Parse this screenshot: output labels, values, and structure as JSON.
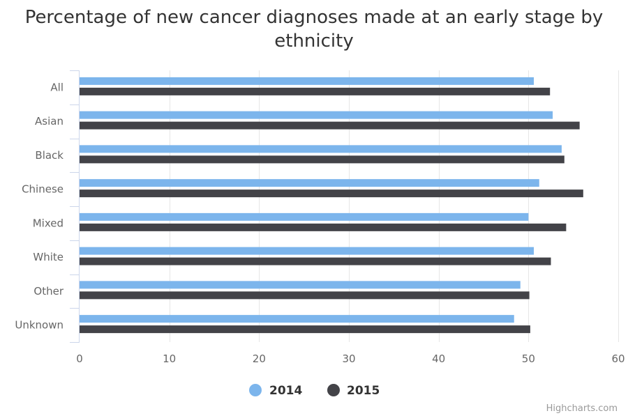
{
  "chart_data": {
    "type": "bar",
    "orientation": "horizontal",
    "title": "Percentage of new cancer diagnoses made at an early stage by ethnicity",
    "categories": [
      "All",
      "Asian",
      "Black",
      "Chinese",
      "Mixed",
      "White",
      "Other",
      "Unknown"
    ],
    "series": [
      {
        "name": "2014",
        "color": "#7cb5ec",
        "values": [
          50.6,
          52.7,
          53.7,
          51.2,
          50.0,
          50.6,
          49.1,
          48.4
        ]
      },
      {
        "name": "2015",
        "color": "#434348",
        "values": [
          52.4,
          55.7,
          54.0,
          56.1,
          54.2,
          52.5,
          50.1,
          50.2
        ]
      }
    ],
    "xlim": [
      0,
      60
    ],
    "xticks": [
      0,
      10,
      20,
      30,
      40,
      50,
      60
    ],
    "grid": true,
    "legend_position": "bottom-center"
  },
  "credits": "Highcharts.com"
}
